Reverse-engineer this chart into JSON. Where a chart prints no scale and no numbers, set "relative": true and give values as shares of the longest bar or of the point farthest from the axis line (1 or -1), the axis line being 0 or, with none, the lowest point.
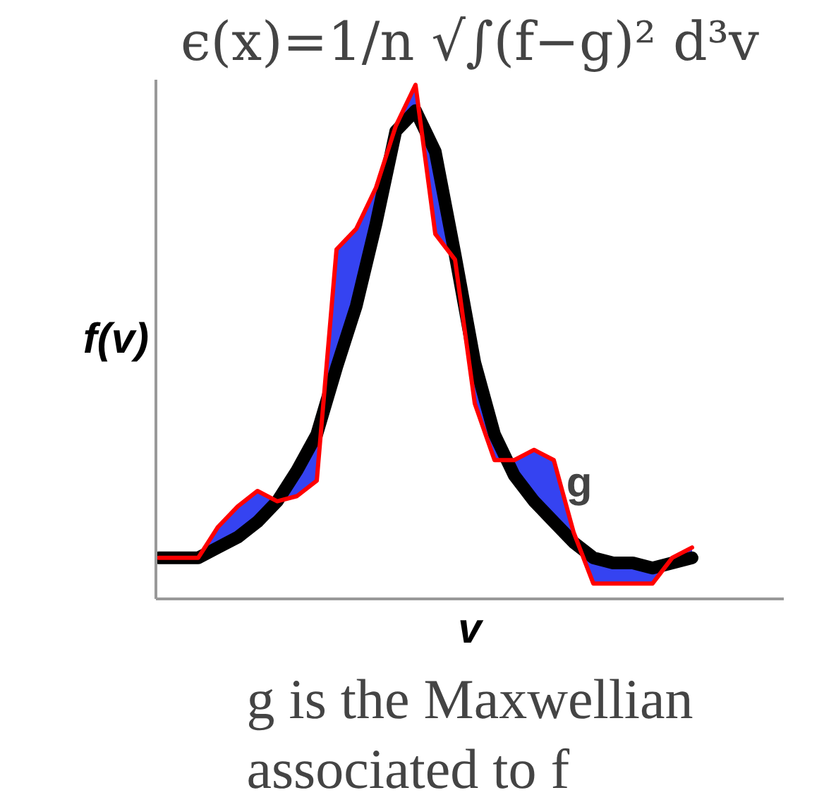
{
  "chart_data": {
    "type": "line",
    "relative": true,
    "title": "ϵ(x)=1/n √∫(f−g)² d³v",
    "ylabel": "f(v)",
    "xlabel": "v",
    "marker": "none",
    "line_style": "solid",
    "categories": [
      null,
      null,
      null,
      null,
      null,
      null,
      null,
      null,
      null,
      null,
      null,
      null,
      null,
      null,
      null,
      null,
      null,
      null,
      null,
      null,
      null,
      null,
      null,
      null,
      null,
      null,
      null,
      null
    ],
    "series": [
      {
        "color": "#000000",
        "values": [
          0.08,
          0.08,
          0.08,
          0.1,
          0.12,
          0.15,
          0.19,
          0.25,
          0.32,
          0.45,
          0.57,
          0.73,
          0.91,
          0.95,
          0.87,
          0.67,
          0.46,
          0.32,
          0.24,
          0.19,
          0.15,
          0.11,
          0.08,
          0.07,
          0.07,
          0.06,
          0.07,
          0.08
        ]
      },
      {
        "color": "#ff0000",
        "values": [
          0.08,
          0.08,
          0.08,
          0.14,
          0.18,
          0.21,
          0.19,
          0.2,
          0.23,
          0.68,
          0.72,
          0.8,
          0.92,
          1.0,
          0.71,
          0.66,
          0.38,
          0.27,
          0.27,
          0.29,
          0.27,
          0.13,
          0.03,
          0.03,
          0.03,
          0.03,
          0.08,
          0.1
        ]
      }
    ],
    "annotations": [
      "g",
      "g is the Maxwellian associated to f"
    ]
  }
}
